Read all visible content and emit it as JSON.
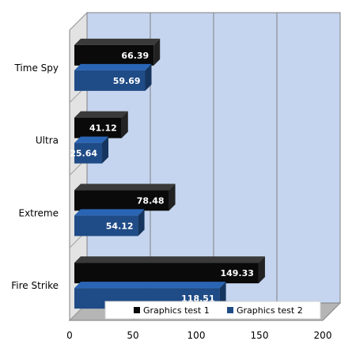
{
  "chart_data": {
    "type": "bar",
    "orientation": "horizontal",
    "categories": [
      "Time Spy",
      "Ultra",
      "Extreme",
      "Fire Strike"
    ],
    "series": [
      {
        "name": "Graphics test 1",
        "values": [
          66.39,
          41.12,
          78.48,
          149.33
        ],
        "color": "#0a0a0a"
      },
      {
        "name": "Graphics test 2",
        "values": [
          59.69,
          25.64,
          54.12,
          118.51
        ],
        "color": "#1f4b86"
      }
    ],
    "xlim": [
      0,
      200
    ],
    "xticks": [
      "0",
      "50",
      "100",
      "150",
      "200"
    ],
    "title": "",
    "xlabel": "",
    "ylabel": "",
    "grid": true,
    "legend": "bottom",
    "plot_background": "#c5d5ef"
  }
}
